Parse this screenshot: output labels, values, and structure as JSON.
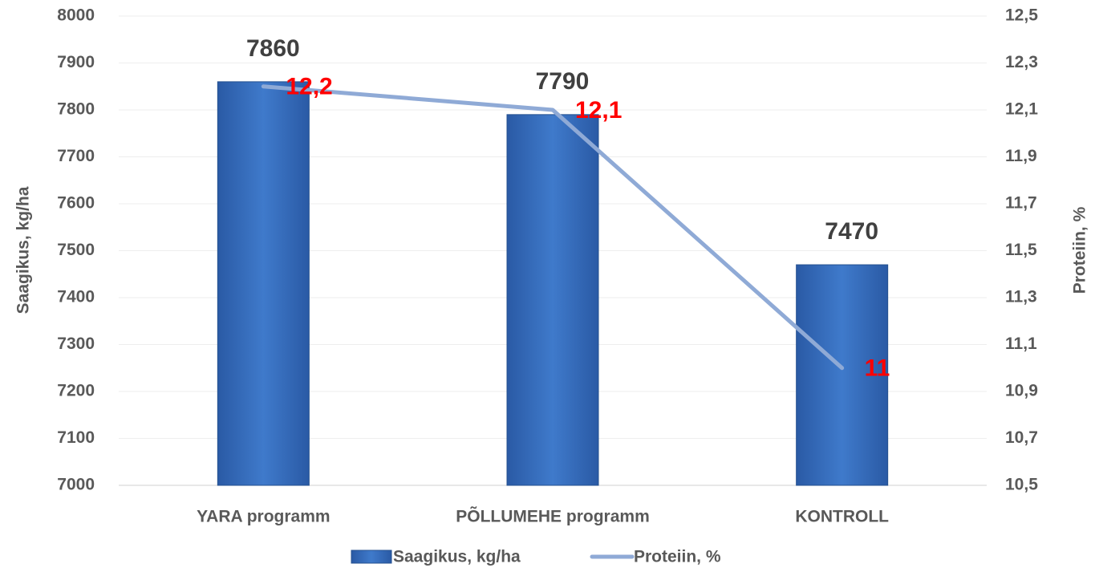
{
  "chart_data": {
    "type": "bar",
    "categories": [
      "YARA programm",
      "PÕLLUMEHE programm",
      "KONTROLL"
    ],
    "series": [
      {
        "name": "Saagikus, kg/ha",
        "type": "bar",
        "color": "#3a70c0",
        "values": [
          7860,
          7790,
          7470
        ]
      },
      {
        "name": "Proteiin, %",
        "type": "line",
        "axis": "y2",
        "color": "#8faad6",
        "values": [
          12.2,
          12.1,
          11
        ],
        "value_labels": [
          "12,2",
          "12,1",
          "11"
        ],
        "label_color": "#ff0000"
      }
    ],
    "ylabel": "Saagikus, kg/ha",
    "y2label": "Proteiin, %",
    "ylim": [
      7000,
      8000
    ],
    "yticks": [
      7000,
      7100,
      7200,
      7300,
      7400,
      7500,
      7600,
      7700,
      7800,
      7900,
      8000
    ],
    "y2lim": [
      10.5,
      12.5
    ],
    "y2ticks": [
      {
        "value": 10.5,
        "label": "10,5"
      },
      {
        "value": 10.7,
        "label": "10,7"
      },
      {
        "value": 10.9,
        "label": "10,9"
      },
      {
        "value": 11.1,
        "label": "11,1"
      },
      {
        "value": 11.3,
        "label": "11,3"
      },
      {
        "value": 11.5,
        "label": "11,5"
      },
      {
        "value": 11.7,
        "label": "11,7"
      },
      {
        "value": 11.9,
        "label": "11,9"
      },
      {
        "value": 12.1,
        "label": "12,1"
      },
      {
        "value": 12.3,
        "label": "12,3"
      },
      {
        "value": 12.5,
        "label": "12,5"
      }
    ],
    "grid": true,
    "legend": "bottom"
  }
}
